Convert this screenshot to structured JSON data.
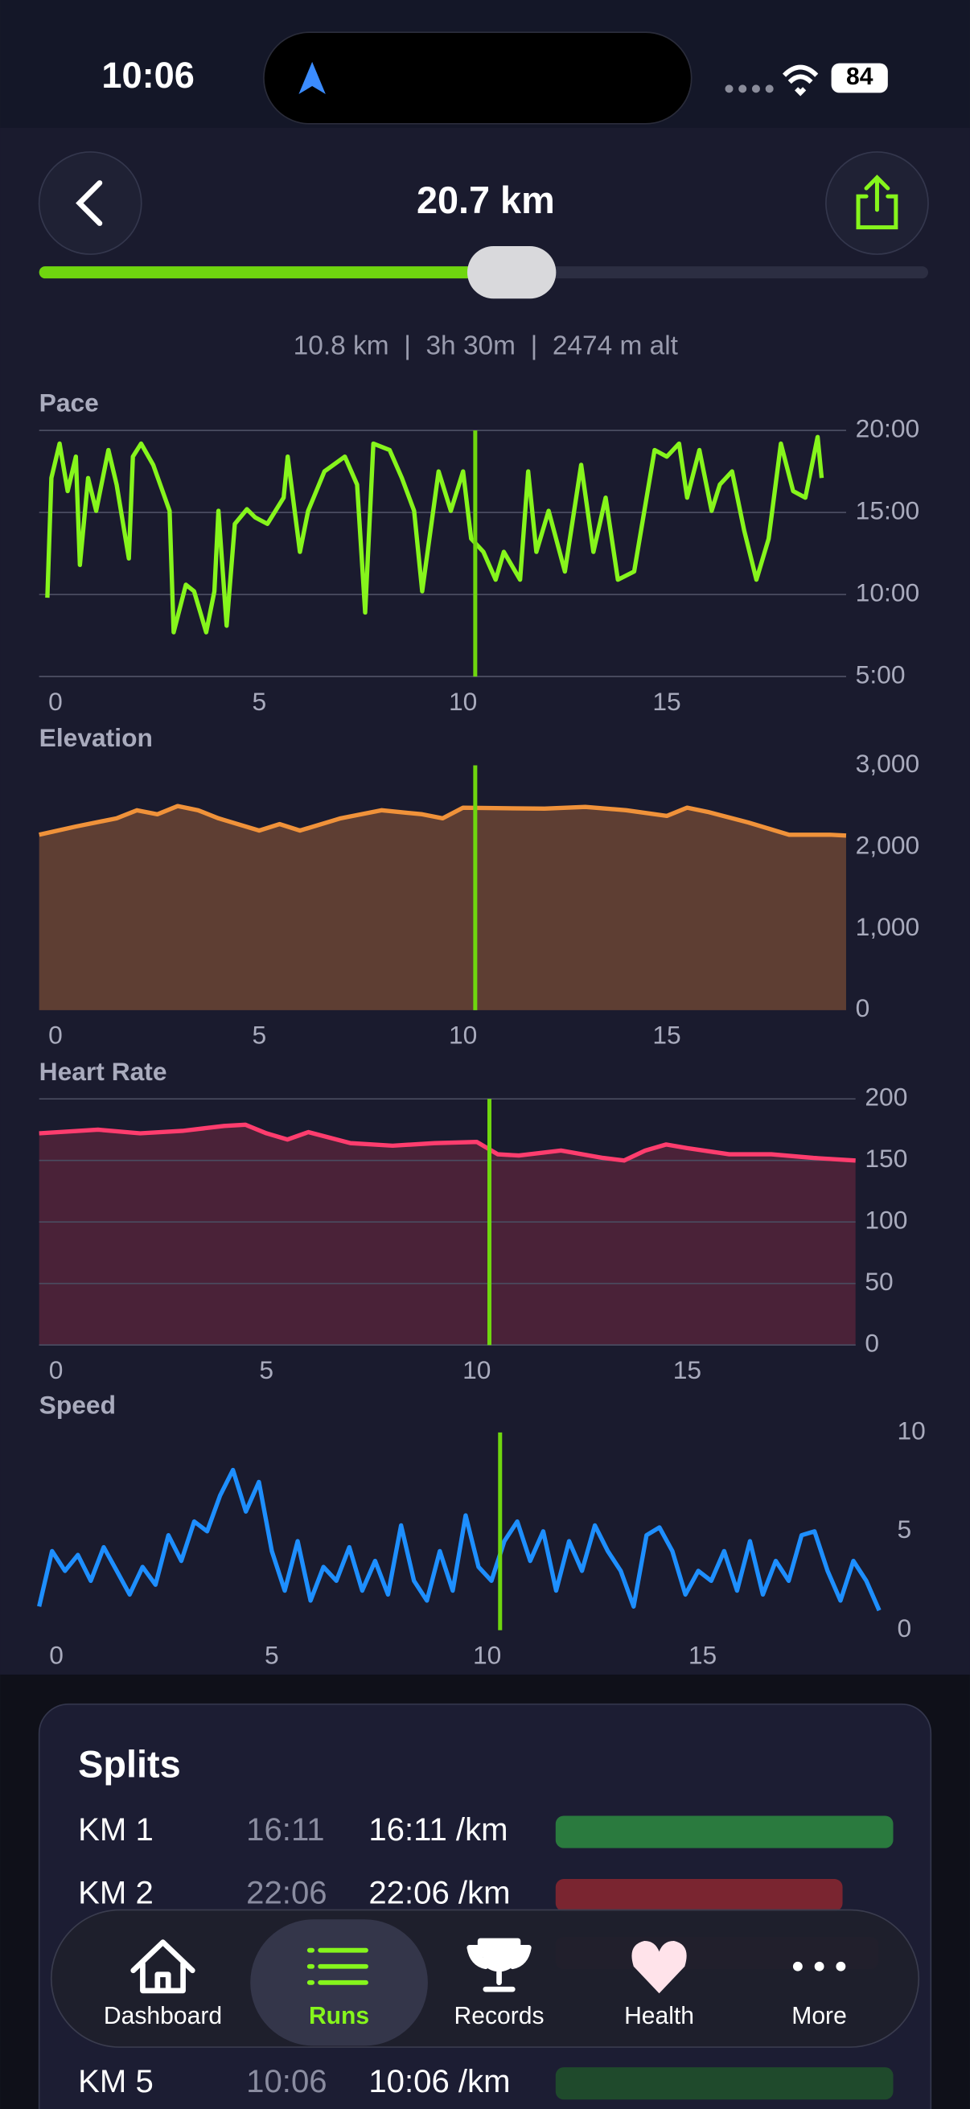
{
  "status_bar": {
    "time": "10:06",
    "battery": "84"
  },
  "header": {
    "title": "20.7 km",
    "slider_progress": 0.53,
    "stats": "10.8 km  |  3h 30m  |  2474 m alt"
  },
  "charts": [
    {
      "type": "line",
      "title": "Pace",
      "color": "#86f51c",
      "fill": null,
      "grid": true,
      "marker_x": 10.3,
      "xlim": [
        -0.4,
        19.4
      ],
      "ylim": [
        5,
        20
      ],
      "xticks": [
        0,
        5,
        10,
        15
      ],
      "yticks": [
        {
          "value": 20,
          "label": "20:00"
        },
        {
          "value": 15,
          "label": "15:00"
        },
        {
          "value": 10,
          "label": "10:00"
        },
        {
          "value": 5,
          "label": "5:00"
        }
      ],
      "x": [
        -0.2,
        -0.1,
        0.1,
        0.3,
        0.5,
        0.6,
        0.8,
        1.0,
        1.3,
        1.5,
        1.8,
        1.9,
        2.1,
        2.4,
        2.8,
        2.9,
        3.2,
        3.4,
        3.7,
        3.9,
        4.0,
        4.2,
        4.4,
        4.7,
        4.9,
        5.2,
        5.6,
        5.7,
        6.0,
        6.2,
        6.6,
        7.1,
        7.4,
        7.6,
        7.8,
        8.2,
        8.5,
        8.8,
        9.0,
        9.4,
        9.7,
        10.0,
        10.2,
        10.5,
        10.8,
        11.0,
        11.4,
        11.6,
        11.8,
        12.1,
        12.5,
        12.9,
        13.2,
        13.5,
        13.8,
        14.2,
        14.7,
        15.0,
        15.3,
        15.5,
        15.8,
        16.1,
        16.3,
        16.6,
        16.9,
        17.2,
        17.5,
        17.8,
        18.1,
        18.4,
        18.7,
        18.8
      ],
      "values": [
        9.8,
        17.1,
        19.2,
        16.3,
        18.4,
        11.8,
        17.1,
        15.1,
        18.8,
        16.7,
        12.2,
        18.4,
        19.2,
        17.9,
        15.1,
        7.7,
        10.6,
        10.2,
        7.7,
        10.2,
        15.1,
        8.1,
        14.3,
        15.2,
        14.7,
        14.3,
        15.9,
        18.4,
        12.6,
        15.1,
        17.5,
        18.4,
        16.7,
        8.9,
        19.2,
        18.8,
        17.1,
        15.1,
        10.2,
        17.5,
        15.1,
        17.5,
        13.4,
        12.6,
        10.9,
        12.6,
        10.9,
        17.5,
        12.6,
        15.1,
        11.4,
        17.9,
        12.6,
        15.9,
        10.9,
        11.4,
        18.8,
        18.4,
        19.2,
        15.9,
        18.8,
        15.1,
        16.7,
        17.5,
        13.9,
        10.9,
        13.4,
        19.2,
        16.3,
        15.9,
        19.6,
        17.1
      ]
    },
    {
      "type": "area",
      "title": "Elevation",
      "color": "#f0923a",
      "fill": "#5e3e33",
      "grid": false,
      "marker_x": 10.3,
      "xlim": [
        -0.4,
        19.4
      ],
      "ylim": [
        0,
        3000
      ],
      "xticks": [
        0,
        5,
        10,
        15
      ],
      "yticks": [
        {
          "value": 3000,
          "label": "3,000"
        },
        {
          "value": 2000,
          "label": "2,000"
        },
        {
          "value": 1000,
          "label": "1,000"
        },
        0
      ],
      "x": [
        -0.4,
        0.5,
        1.5,
        2.0,
        2.5,
        3.0,
        3.5,
        4.0,
        5.0,
        5.5,
        6.0,
        7.0,
        8.0,
        9.0,
        9.5,
        10.0,
        11.0,
        12.0,
        13.0,
        14.0,
        15.0,
        15.5,
        16.0,
        17.0,
        18.0,
        19.0,
        19.4
      ],
      "values": [
        2150,
        2250,
        2350,
        2450,
        2400,
        2500,
        2450,
        2350,
        2200,
        2280,
        2200,
        2350,
        2450,
        2400,
        2350,
        2480,
        2474,
        2470,
        2490,
        2450,
        2380,
        2480,
        2430,
        2300,
        2150,
        2150,
        2140
      ]
    },
    {
      "type": "area",
      "title": "Heart Rate",
      "color": "#ff3d6e",
      "fill": "#4a2238",
      "grid": true,
      "marker_x": 10.3,
      "xlim": [
        -0.4,
        19.0
      ],
      "ylim": [
        0,
        200
      ],
      "xticks": [
        0,
        5,
        10,
        15
      ],
      "yticks": [
        200,
        150,
        100,
        50,
        0
      ],
      "x": [
        -0.4,
        1,
        2,
        3,
        4,
        4.5,
        5,
        5.5,
        6,
        7,
        8,
        9,
        10,
        10.5,
        11,
        12,
        13,
        13.5,
        14,
        14.5,
        15,
        16,
        17,
        18,
        19
      ],
      "values": [
        172,
        175,
        172,
        174,
        178,
        179,
        172,
        167,
        173,
        164,
        162,
        164,
        165,
        155,
        154,
        158,
        152,
        150,
        158,
        163,
        160,
        155,
        155,
        152,
        150
      ]
    },
    {
      "type": "line",
      "title": "Speed",
      "color": "#1e8fff",
      "fill": null,
      "grid": false,
      "marker_x": 10.3,
      "xlim": [
        -0.4,
        19.3
      ],
      "ylim": [
        0,
        10
      ],
      "xticks": [
        0,
        5,
        10,
        15
      ],
      "yticks": [
        10,
        5,
        0
      ],
      "x": [
        -0.4,
        -0.1,
        0.2,
        0.5,
        0.8,
        1.1,
        1.4,
        1.7,
        2.0,
        2.3,
        2.6,
        2.9,
        3.2,
        3.5,
        3.8,
        4.1,
        4.4,
        4.7,
        5.0,
        5.3,
        5.6,
        5.9,
        6.2,
        6.5,
        6.8,
        7.1,
        7.4,
        7.7,
        8.0,
        8.3,
        8.6,
        8.9,
        9.2,
        9.5,
        9.8,
        10.1,
        10.4,
        10.7,
        11.0,
        11.3,
        11.6,
        11.9,
        12.2,
        12.5,
        12.8,
        13.1,
        13.4,
        13.7,
        14.0,
        14.3,
        14.6,
        14.9,
        15.2,
        15.5,
        15.8,
        16.1,
        16.4,
        16.7,
        17.0,
        17.3,
        17.6,
        17.9,
        18.2,
        18.5,
        18.8,
        19.1
      ],
      "values": [
        1.2,
        4.0,
        3.0,
        3.8,
        2.5,
        4.2,
        3.0,
        1.8,
        3.2,
        2.3,
        4.8,
        3.5,
        5.5,
        5.0,
        6.8,
        8.1,
        6.0,
        7.5,
        4.0,
        2.0,
        4.5,
        1.5,
        3.2,
        2.5,
        4.2,
        2.0,
        3.5,
        1.8,
        5.3,
        2.5,
        1.5,
        4.0,
        2.0,
        5.8,
        3.2,
        2.5,
        4.5,
        5.5,
        3.5,
        5.0,
        2.0,
        4.5,
        3.0,
        5.3,
        4.0,
        3.0,
        1.2,
        4.8,
        5.2,
        4.0,
        1.8,
        3.0,
        2.5,
        4.0,
        2.0,
        4.5,
        1.8,
        3.5,
        2.5,
        4.8,
        5.0,
        3.0,
        1.5,
        3.5,
        2.5,
        1.0
      ]
    }
  ],
  "splits": {
    "title": "Splits",
    "rows": [
      {
        "km": "KM 1",
        "time": "16:11",
        "pace": "16:11 /km",
        "bar": 1.0,
        "color": "#2a7a3e"
      },
      {
        "km": "KM 2",
        "time": "22:06",
        "pace": "22:06 /km",
        "bar": 0.85,
        "color": "#7a2530"
      },
      {
        "km": "KM 5",
        "time": "10:06",
        "pace": "10:06 /km",
        "bar": 1.0,
        "color": "#1f4a2c"
      }
    ]
  },
  "tab_bar": {
    "items": [
      "Dashboard",
      "Runs",
      "Records",
      "Health",
      "More"
    ],
    "active": 1
  }
}
